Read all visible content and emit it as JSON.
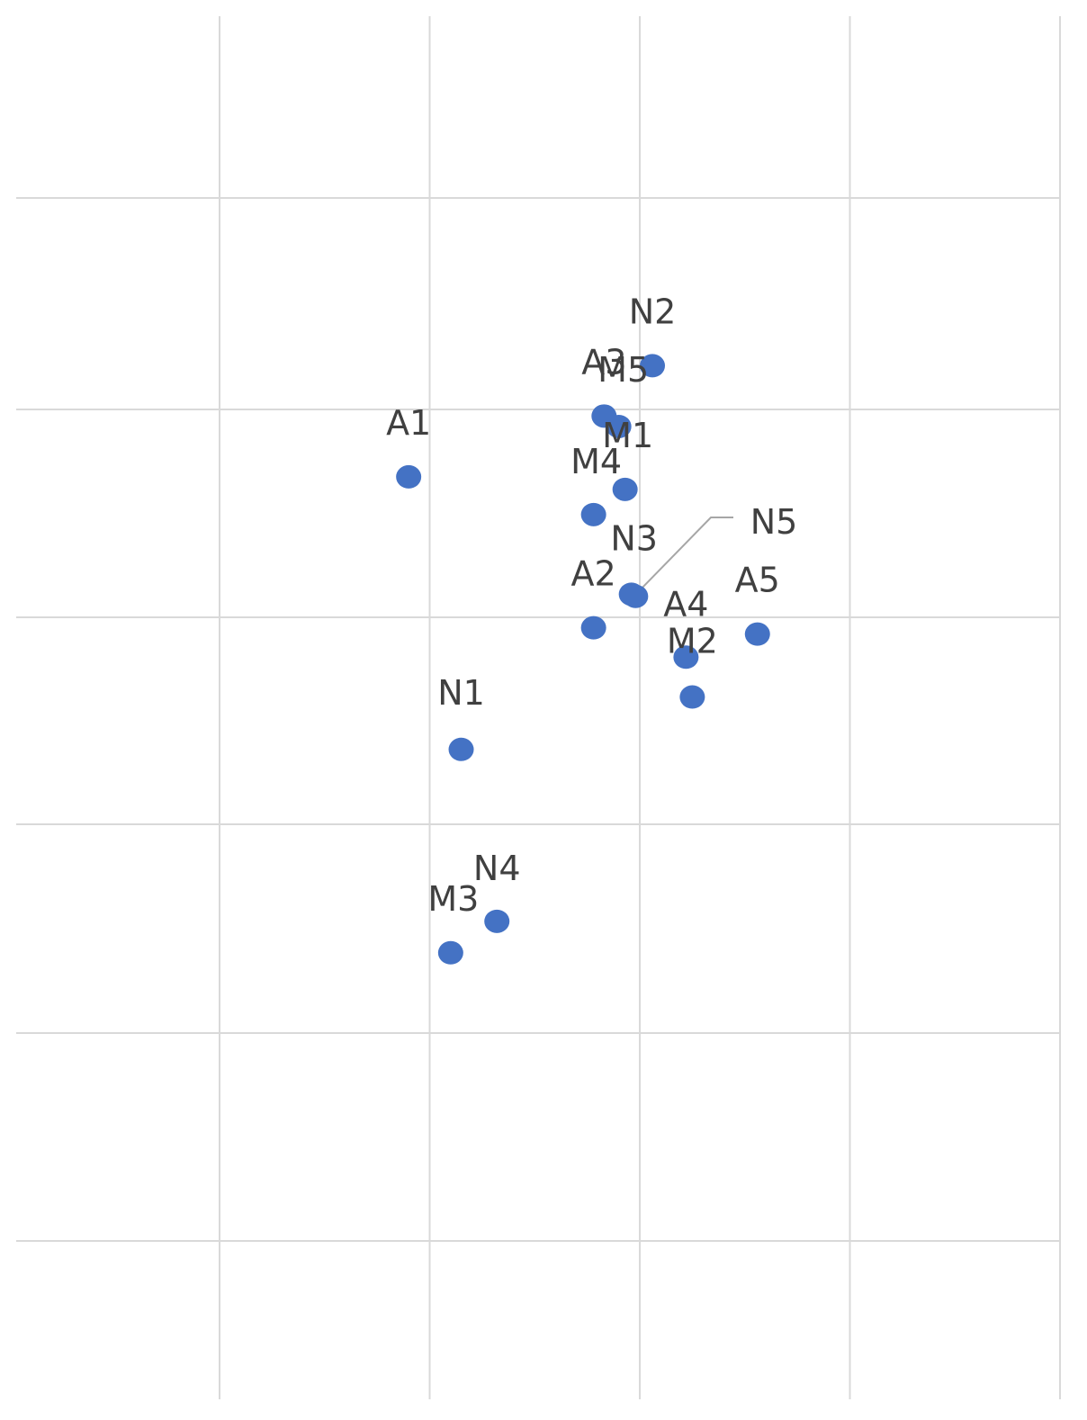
{
  "chart_data": {
    "type": "scatter",
    "title": "",
    "xlabel": "",
    "ylabel": "",
    "xlim": [
      -1,
      1.5
    ],
    "ylim": [
      -1.8,
      1.5
    ],
    "grid": true,
    "legend": "none",
    "marker_color": "#4472c4",
    "points": [
      {
        "label": "N2",
        "x": 0.06,
        "y": 1.2
      },
      {
        "label": "A3",
        "x": -0.17,
        "y": 0.96
      },
      {
        "label": "M5",
        "x": -0.1,
        "y": 0.91
      },
      {
        "label": "A1",
        "x": -1.1,
        "y": 0.67
      },
      {
        "label": "M1",
        "x": -0.07,
        "y": 0.61
      },
      {
        "label": "M4",
        "x": -0.22,
        "y": 0.49
      },
      {
        "label": "N3",
        "x": -0.04,
        "y": 0.11
      },
      {
        "label": "N5",
        "x": -0.02,
        "y": 0.1
      },
      {
        "label": "A2",
        "x": -0.22,
        "y": -0.05
      },
      {
        "label": "A5",
        "x": 0.56,
        "y": -0.08
      },
      {
        "label": "A4",
        "x": 0.22,
        "y": -0.19
      },
      {
        "label": "M2",
        "x": 0.25,
        "y": -0.38
      },
      {
        "label": "N1",
        "x": -0.85,
        "y": -0.63
      },
      {
        "label": "N4",
        "x": -0.68,
        "y": -1.45
      },
      {
        "label": "M3",
        "x": -0.9,
        "y": -1.6
      }
    ]
  }
}
